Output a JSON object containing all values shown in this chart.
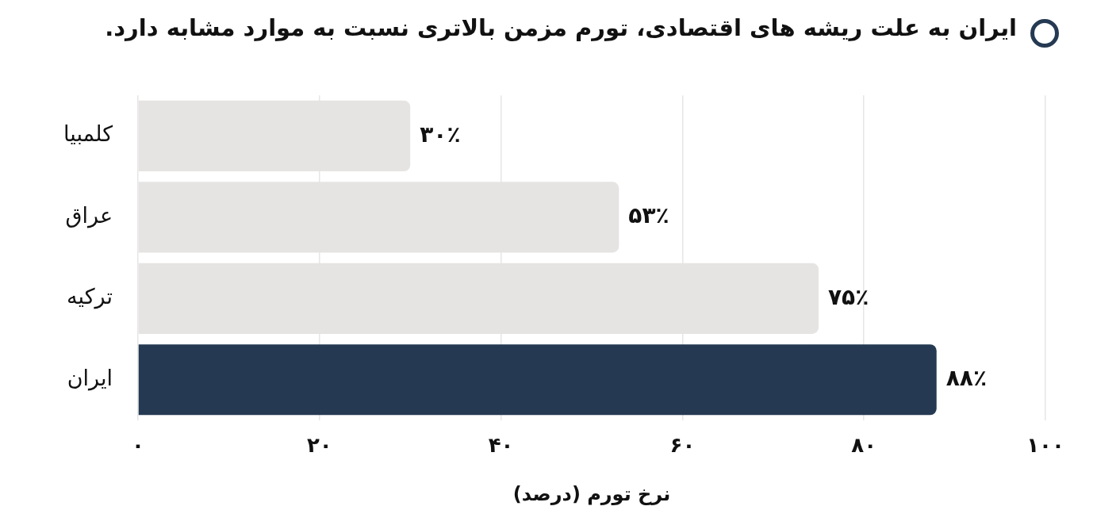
{
  "chart_data": {
    "type": "bar",
    "orientation": "horizontal",
    "title": "ایران به علت ریشه های اقتصادی، تورم مزمن بالاتری نسبت به موارد مشابه دارد.",
    "xlabel": "نرخ تورم (درصد)",
    "categories": [
      "کلمبیا",
      "عراق",
      "ترکیه",
      "ایران"
    ],
    "values": [
      30,
      53,
      75,
      88
    ],
    "colors": [
      "#e5e4e2",
      "#e5e4e2",
      "#e5e4e2",
      "#253a52"
    ],
    "value_labels": [
      "۳۰٪",
      "۵۳٪",
      "۷۵٪",
      "۸۸٪"
    ],
    "xlim": [
      0,
      100
    ],
    "xticks": [
      {
        "value": 0,
        "label": "۰"
      },
      {
        "value": 20,
        "label": "۲۰"
      },
      {
        "value": 40,
        "label": "۴۰"
      },
      {
        "value": 60,
        "label": "۶۰"
      },
      {
        "value": 80,
        "label": "۸۰"
      },
      {
        "value": 100,
        "label": "۱۰۰"
      }
    ],
    "grid": "x",
    "legend": false
  }
}
